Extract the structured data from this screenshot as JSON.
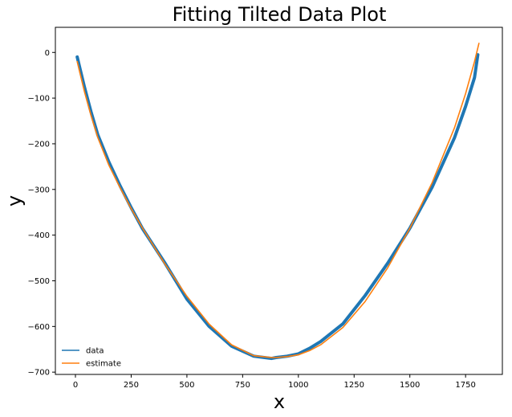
{
  "chart_data": {
    "type": "line",
    "title": "Fitting Tilted Data Plot",
    "xlabel": "x",
    "ylabel": "y",
    "xlim": [
      -90,
      1915
    ],
    "ylim": [
      -705,
      55
    ],
    "xticks": [
      0,
      250,
      500,
      750,
      1000,
      1250,
      1500,
      1750
    ],
    "yticks": [
      0,
      -100,
      -200,
      -300,
      -400,
      -500,
      -600,
      -700
    ],
    "grid": false,
    "legend_position": "lower-left",
    "series": [
      {
        "name": "data",
        "color": "#1f77b4",
        "x": [
          8,
          20,
          40,
          70,
          100,
          150,
          200,
          250,
          300,
          400,
          500,
          600,
          700,
          800,
          880,
          900,
          950,
          1000,
          1050,
          1100,
          1200,
          1300,
          1400,
          1500,
          1600,
          1700,
          1750,
          1790,
          1805
        ],
        "y": [
          -10,
          -35,
          -75,
          -130,
          -180,
          -240,
          -292,
          -340,
          -385,
          -460,
          -540,
          -600,
          -643,
          -665,
          -670,
          -668,
          -665,
          -660,
          -648,
          -633,
          -594,
          -532,
          -462,
          -385,
          -295,
          -187,
          -118,
          -55,
          -5
        ]
      },
      {
        "name": "estimate",
        "color": "#ff7f0e",
        "x": [
          8,
          20,
          40,
          70,
          100,
          150,
          200,
          250,
          300,
          400,
          500,
          600,
          700,
          800,
          880,
          900,
          950,
          1000,
          1050,
          1100,
          1200,
          1300,
          1400,
          1500,
          1600,
          1700,
          1750,
          1790,
          1810
        ],
        "y": [
          -20,
          -45,
          -85,
          -138,
          -186,
          -247,
          -296,
          -342,
          -384,
          -462,
          -534,
          -595,
          -640,
          -664,
          -668,
          -668,
          -666,
          -662,
          -653,
          -640,
          -602,
          -545,
          -472,
          -385,
          -285,
          -165,
          -90,
          -20,
          20
        ]
      }
    ]
  }
}
